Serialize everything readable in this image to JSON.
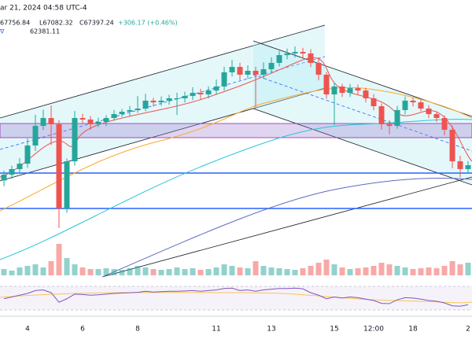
{
  "header": {
    "date": "ar 21, 2024 04:58 UTC-4",
    "high": "67756.84",
    "low": "L67082.32",
    "close": "C67397.24",
    "change": "+306.17 (+0.46%)",
    "level": "62381.11"
  },
  "chart_data": {
    "type": "candlestick",
    "categories": [
      null,
      null,
      null,
      "4",
      null,
      null,
      null,
      null,
      null,
      null,
      "6",
      null,
      null,
      null,
      null,
      null,
      null,
      "8",
      null,
      null,
      null,
      null,
      null,
      null,
      null,
      null,
      null,
      "11",
      null,
      null,
      null,
      null,
      null,
      null,
      "13",
      null,
      null,
      null,
      null,
      null,
      null,
      null,
      "15",
      null,
      null,
      null,
      null,
      "12:00",
      null,
      null,
      null,
      null,
      "18",
      null,
      null,
      null,
      null,
      null,
      null,
      "2"
    ],
    "open": [
      62000,
      62420,
      62820,
      63210,
      64520,
      65930,
      66500,
      66050,
      59980,
      63380,
      66500,
      66390,
      66050,
      66220,
      66500,
      66780,
      66950,
      67070,
      67180,
      67750,
      67630,
      67750,
      67920,
      67920,
      68090,
      68310,
      68200,
      68480,
      68770,
      69790,
      70180,
      69620,
      69900,
      69620,
      70010,
      70470,
      71030,
      71150,
      71260,
      71150,
      70470,
      69620,
      68200,
      68770,
      68310,
      68650,
      68480,
      67920,
      67350,
      66050,
      65930,
      67070,
      67750,
      67630,
      67180,
      66780,
      66500,
      65650,
      63380,
      62820
    ],
    "high": [
      62720,
      63070,
      63610,
      65020,
      66730,
      67100,
      67400,
      66350,
      63580,
      67000,
      66800,
      66640,
      66520,
      66700,
      67080,
      67150,
      67370,
      68080,
      68250,
      67950,
      68050,
      68170,
      68320,
      68390,
      68710,
      68610,
      68780,
      69270,
      70190,
      70680,
      70480,
      70300,
      70200,
      70510,
      70870,
      71330,
      71500,
      71660,
      71560,
      71450,
      70870,
      69820,
      69070,
      68970,
      68950,
      68900,
      68680,
      68220,
      67550,
      66350,
      67370,
      68050,
      67950,
      67830,
      67430,
      66980,
      66700,
      65950,
      63780,
      63400
    ],
    "low": [
      61600,
      62120,
      62520,
      62910,
      64120,
      65630,
      64550,
      58580,
      59680,
      63080,
      66090,
      65650,
      65850,
      65920,
      66300,
      66580,
      66650,
      66870,
      66980,
      67330,
      67380,
      67450,
      66720,
      67620,
      67790,
      67800,
      67900,
      68180,
      68470,
      69490,
      69220,
      69320,
      67220,
      69320,
      69710,
      70220,
      70730,
      70850,
      70850,
      70170,
      69220,
      67900,
      66000,
      68010,
      68010,
      68180,
      67620,
      67050,
      65650,
      65330,
      65730,
      66770,
      67330,
      66980,
      66480,
      66200,
      65250,
      62880,
      62220,
      62520
    ],
    "close": [
      62420,
      62820,
      63210,
      64520,
      65930,
      66500,
      66050,
      59980,
      63380,
      66500,
      66390,
      66050,
      66220,
      66500,
      66780,
      66950,
      67070,
      67180,
      67750,
      67630,
      67750,
      67920,
      67920,
      68090,
      68310,
      68200,
      68480,
      68770,
      69790,
      70180,
      69620,
      69900,
      69620,
      70010,
      70470,
      71030,
      71150,
      71260,
      71150,
      70470,
      69620,
      68200,
      68770,
      68310,
      68650,
      68480,
      67920,
      67350,
      66050,
      65930,
      67070,
      67750,
      67630,
      67180,
      66780,
      66500,
      65650,
      63380,
      62820,
      63100
    ],
    "ylim": [
      58000,
      75000
    ],
    "up_color": "#26a69a",
    "down_color": "#ef5350",
    "volume": [
      8,
      6,
      10,
      12,
      14,
      10,
      18,
      40,
      22,
      14,
      10,
      8,
      8,
      9,
      8,
      7,
      9,
      12,
      10,
      8,
      7,
      8,
      10,
      8,
      9,
      7,
      8,
      10,
      14,
      12,
      10,
      9,
      18,
      12,
      10,
      9,
      8,
      7,
      9,
      12,
      16,
      20,
      14,
      10,
      8,
      9,
      10,
      12,
      16,
      14,
      12,
      10,
      8,
      9,
      10,
      9,
      12,
      18,
      14,
      16
    ],
    "volume_ylim": [
      0,
      60
    ],
    "rsi": [
      45,
      50,
      55,
      60,
      68,
      70,
      62,
      35,
      45,
      58,
      57,
      55,
      56,
      58,
      60,
      61,
      62,
      63,
      66,
      64,
      65,
      66,
      66,
      67,
      68,
      66,
      68,
      70,
      74,
      75,
      68,
      70,
      66,
      70,
      72,
      74,
      74,
      75,
      73,
      62,
      55,
      45,
      50,
      47,
      50,
      48,
      44,
      40,
      32,
      31,
      42,
      48,
      47,
      44,
      40,
      38,
      33,
      25,
      24,
      28
    ],
    "rsi_ylim": [
      0,
      100
    ],
    "rsi_color": "#7e57c2"
  }
}
